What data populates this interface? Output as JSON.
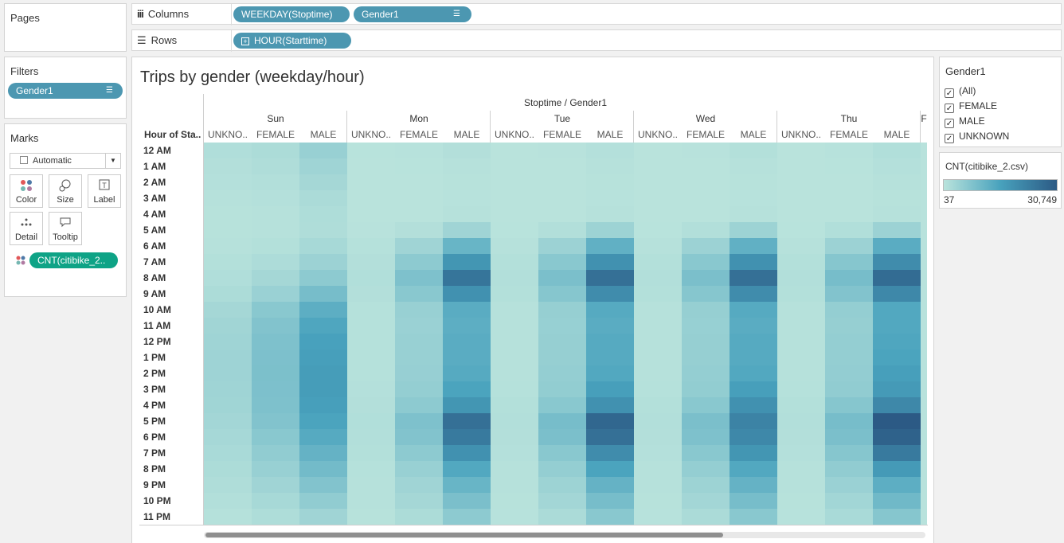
{
  "pages": {
    "title": "Pages"
  },
  "shelves": {
    "columns_label": "Columns",
    "rows_label": "Rows",
    "columns_pills": [
      "WEEKDAY(Stoptime)",
      "Gender1"
    ],
    "rows_pills": [
      "HOUR(Starttime)"
    ]
  },
  "filters": {
    "title": "Filters",
    "pill": "Gender1"
  },
  "marks": {
    "title": "Marks",
    "type": "Automatic",
    "buttons": [
      "Color",
      "Size",
      "Label",
      "Detail",
      "Tooltip"
    ],
    "color_pill": "CNT(citibike_2.."
  },
  "view": {
    "title": "Trips by gender (weekday/hour)",
    "col_header": "Stoptime / Gender1",
    "row_axis_label": "Hour of Sta..",
    "days": [
      "Sun",
      "Mon",
      "Tue",
      "Wed",
      "Thu",
      "F"
    ],
    "genders": [
      "UNKNO..",
      "FEMALE",
      "MALE"
    ],
    "hours": [
      "12 AM",
      "1 AM",
      "2 AM",
      "3 AM",
      "4 AM",
      "5 AM",
      "6 AM",
      "7 AM",
      "8 AM",
      "9 AM",
      "10 AM",
      "11 AM",
      "12 PM",
      "1 PM",
      "2 PM",
      "3 PM",
      "4 PM",
      "5 PM",
      "6 PM",
      "7 PM",
      "8 PM",
      "9 PM",
      "10 PM",
      "11 PM"
    ]
  },
  "chart_data": {
    "type": "heatmap",
    "title": "Trips by gender (weekday/hour)",
    "xlabel": "Stoptime / Gender1",
    "ylabel": "Hour of Starttime",
    "measure": "CNT(citibike_2.csv)",
    "range": [
      37,
      30749
    ],
    "columns": [
      "Sun UNKNOWN",
      "Sun FEMALE",
      "Sun MALE",
      "Mon UNKNOWN",
      "Mon FEMALE",
      "Mon MALE",
      "Tue UNKNOWN",
      "Tue FEMALE",
      "Tue MALE",
      "Wed UNKNOWN",
      "Wed FEMALE",
      "Wed MALE",
      "Thu UNKNOWN",
      "Thu FEMALE",
      "Thu MALE"
    ],
    "values": [
      [
        1200,
        1800,
        4500,
        150,
        250,
        900,
        100,
        200,
        700,
        100,
        200,
        800,
        100,
        250,
        1100
      ],
      [
        900,
        1400,
        3600,
        80,
        130,
        500,
        60,
        100,
        450,
        60,
        100,
        450,
        60,
        120,
        650
      ],
      [
        700,
        1000,
        2800,
        60,
        80,
        350,
        40,
        60,
        300,
        40,
        60,
        300,
        40,
        80,
        450
      ],
      [
        500,
        700,
        2000,
        40,
        60,
        250,
        37,
        50,
        250,
        37,
        50,
        250,
        37,
        60,
        300
      ],
      [
        350,
        500,
        1500,
        50,
        70,
        400,
        50,
        70,
        400,
        50,
        70,
        400,
        50,
        80,
        450
      ],
      [
        300,
        500,
        1400,
        200,
        900,
        3500,
        150,
        1000,
        3800,
        150,
        1000,
        3800,
        150,
        1100,
        4000
      ],
      [
        500,
        800,
        2500,
        600,
        3500,
        11000,
        500,
        4000,
        12000,
        500,
        4000,
        12000,
        500,
        4000,
        13000
      ],
      [
        800,
        1600,
        4000,
        900,
        6000,
        18000,
        800,
        6500,
        19000,
        800,
        6500,
        19000,
        800,
        7000,
        20000
      ],
      [
        1200,
        2800,
        6000,
        1100,
        8000,
        25000,
        1000,
        8500,
        26000,
        1000,
        8500,
        26000,
        1000,
        9000,
        27000
      ],
      [
        1800,
        4200,
        9000,
        900,
        6500,
        19000,
        800,
        7000,
        20000,
        800,
        7000,
        20000,
        800,
        7500,
        21000
      ],
      [
        2800,
        6500,
        12500,
        600,
        4500,
        13000,
        500,
        4800,
        13500,
        500,
        4800,
        13500,
        500,
        5000,
        14000
      ],
      [
        3300,
        7500,
        14500,
        600,
        4200,
        12500,
        500,
        4600,
        13000,
        500,
        4600,
        13000,
        500,
        4800,
        14000
      ],
      [
        3600,
        8000,
        15500,
        600,
        4500,
        13000,
        500,
        4800,
        13500,
        500,
        4800,
        13500,
        500,
        5000,
        14500
      ],
      [
        3700,
        8200,
        16000,
        600,
        4500,
        13000,
        500,
        4800,
        13500,
        500,
        4800,
        13500,
        500,
        5000,
        15000
      ],
      [
        3700,
        8300,
        16500,
        600,
        4700,
        13500,
        500,
        5000,
        14000,
        500,
        5000,
        14000,
        500,
        5200,
        16000
      ],
      [
        3600,
        8200,
        16500,
        700,
        5000,
        15000,
        600,
        5300,
        16000,
        600,
        5300,
        16000,
        600,
        5500,
        17000
      ],
      [
        3400,
        8000,
        16000,
        900,
        6000,
        18000,
        800,
        6500,
        19000,
        800,
        6500,
        19000,
        800,
        7000,
        21000
      ],
      [
        3000,
        7500,
        15000,
        1100,
        8000,
        26000,
        1000,
        9000,
        28000,
        1000,
        8500,
        22000,
        1000,
        9000,
        30749
      ],
      [
        2600,
        6500,
        13500,
        1000,
        7500,
        24000,
        900,
        8500,
        26000,
        900,
        8000,
        21000,
        900,
        8500,
        29000
      ],
      [
        2200,
        5500,
        11500,
        800,
        6000,
        19000,
        700,
        6500,
        20000,
        700,
        6500,
        18000,
        700,
        7000,
        24000
      ],
      [
        1800,
        4500,
        9500,
        600,
        4500,
        14000,
        500,
        5000,
        15000,
        500,
        5000,
        14000,
        500,
        5500,
        17000
      ],
      [
        1400,
        3500,
        7500,
        500,
        3500,
        11000,
        400,
        3800,
        11500,
        400,
        3800,
        11500,
        400,
        4200,
        12500
      ],
      [
        1000,
        2500,
        5500,
        400,
        2800,
        8500,
        300,
        3000,
        9000,
        300,
        3000,
        9000,
        300,
        3200,
        10000
      ],
      [
        600,
        1500,
        3500,
        300,
        1800,
        6000,
        250,
        2000,
        6500,
        250,
        2000,
        6500,
        250,
        2200,
        7000
      ]
    ]
  },
  "legend_filter": {
    "title": "Gender1",
    "items": [
      "(All)",
      "FEMALE",
      "MALE",
      "UNKNOWN"
    ]
  },
  "legend_color": {
    "title": "CNT(citibike_2.csv)",
    "min_label": "37",
    "max_label": "30,749"
  }
}
